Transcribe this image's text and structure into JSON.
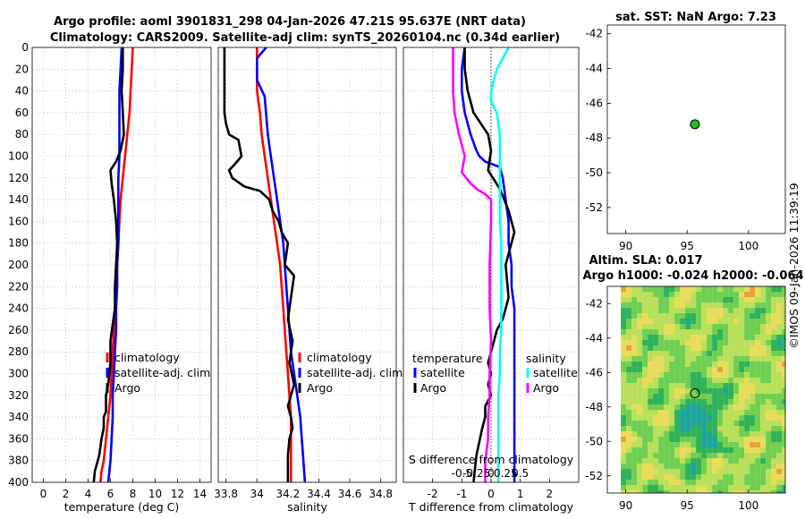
{
  "title_line1": "Argo profile: aoml 3901831_298 04-Jan-2026 47.21S 95.637E (NRT data)",
  "title_line2": "Climatology: CARS2009. Satellite-adj clim: synTS_20260104.nc (0.34d earlier)",
  "watermark": "©IMOS 09-Jan-2026 11:39:19",
  "colors": {
    "climatology": "#ff0000",
    "satellite": "#0000ff",
    "argo": "#000000",
    "sat_salinity": "#00ffff",
    "argo_salinity": "#ff00ff",
    "float_marker": "#22bb22"
  },
  "chart_data": [
    {
      "id": "temperature",
      "type": "line",
      "xlabel": "temperature (deg C)",
      "ylabel": "",
      "xlim": [
        -1,
        15
      ],
      "ylim": [
        400,
        0
      ],
      "xticks": [
        0,
        2,
        4,
        6,
        8,
        10,
        12,
        14
      ],
      "xtick_labels": [
        "0",
        "2",
        "4",
        "6",
        "8",
        "10",
        "12",
        "14"
      ],
      "yticks": [
        0,
        20,
        40,
        60,
        80,
        100,
        120,
        140,
        160,
        180,
        200,
        220,
        240,
        260,
        280,
        300,
        320,
        340,
        360,
        380,
        400
      ],
      "ytick_labels": [
        "0",
        "20",
        "40",
        "60",
        "80",
        "100",
        "120",
        "140",
        "160",
        "180",
        "200",
        "220",
        "240",
        "260",
        "280",
        "300",
        "320",
        "340",
        "360",
        "380",
        "400"
      ],
      "legend": [
        "climatology",
        "satellite-adj. clim",
        "Argo"
      ],
      "series": [
        {
          "name": "climatology",
          "color": "#ff0000",
          "x": [
            8.0,
            7.9,
            7.8,
            7.7,
            7.5,
            7.3,
            7.1,
            6.9,
            6.8,
            6.7,
            6.6,
            6.5,
            6.4,
            6.3,
            6.2,
            6.1,
            6.0,
            5.9,
            5.8,
            5.7,
            5.6,
            5.5,
            5.4,
            5.2,
            5.1
          ],
          "y": [
            0,
            20,
            40,
            60,
            80,
            100,
            120,
            140,
            160,
            180,
            200,
            220,
            240,
            260,
            280,
            300,
            320,
            330,
            340,
            350,
            360,
            370,
            380,
            390,
            400
          ]
        },
        {
          "name": "satellite-adj. clim",
          "color": "#0000ff",
          "x": [
            7.0,
            6.9,
            6.8,
            6.8,
            6.8,
            6.8,
            6.7,
            6.7,
            6.7,
            6.7,
            6.6,
            6.6,
            6.5,
            6.5,
            6.4,
            6.3,
            6.2,
            6.2,
            6.1,
            6.0,
            5.9,
            5.8
          ],
          "y": [
            0,
            20,
            40,
            60,
            80,
            100,
            120,
            140,
            160,
            180,
            200,
            220,
            240,
            260,
            280,
            300,
            320,
            340,
            360,
            380,
            390,
            400
          ]
        },
        {
          "name": "Argo",
          "color": "#000000",
          "x": [
            7.1,
            7.1,
            7.0,
            7.1,
            7.2,
            6.9,
            6.5,
            6.0,
            6.1,
            6.3,
            6.5,
            6.6,
            6.5,
            6.4,
            6.4,
            6.2,
            6.1,
            6.0,
            6.0,
            5.8,
            5.6,
            5.6,
            5.4,
            5.4,
            5.2,
            5.0,
            4.6,
            4.5
          ],
          "y": [
            0,
            20,
            40,
            60,
            80,
            95,
            105,
            113,
            125,
            140,
            160,
            180,
            200,
            220,
            240,
            255,
            262,
            270,
            290,
            310,
            320,
            335,
            340,
            350,
            360,
            375,
            390,
            400
          ]
        }
      ]
    },
    {
      "id": "salinity",
      "type": "line",
      "xlabel": "salinity",
      "xlim": [
        33.75,
        34.9
      ],
      "ylim": [
        400,
        0
      ],
      "xticks": [
        33.8,
        34,
        34.2,
        34.4,
        34.6,
        34.8
      ],
      "xtick_labels": [
        "33.8",
        "34",
        "34.2",
        "34.4",
        "34.6",
        "34.8"
      ],
      "legend": [
        "climatology",
        "satellite-adj. clim",
        "Argo"
      ],
      "series": [
        {
          "name": "climatology",
          "color": "#ff0000",
          "x": [
            34.0,
            34.0,
            34.0,
            34.02,
            34.03,
            34.05,
            34.07,
            34.09,
            34.11,
            34.13,
            34.15,
            34.16,
            34.17,
            34.18,
            34.19,
            34.2,
            34.21,
            34.22,
            34.22,
            34.22,
            34.22
          ],
          "y": [
            0,
            20,
            40,
            60,
            80,
            100,
            120,
            140,
            160,
            180,
            200,
            220,
            240,
            260,
            280,
            300,
            320,
            340,
            360,
            380,
            400
          ]
        },
        {
          "name": "satellite-adj. clim",
          "color": "#0000ff",
          "x": [
            34.06,
            34.0,
            34.0,
            34.05,
            34.07,
            34.09,
            34.11,
            34.13,
            34.15,
            34.17,
            34.18,
            34.19,
            34.2,
            34.21,
            34.22,
            34.24,
            34.26,
            34.28,
            34.29,
            34.3,
            34.31
          ],
          "y": [
            0,
            10,
            30,
            45,
            80,
            100,
            120,
            140,
            160,
            180,
            200,
            220,
            240,
            260,
            280,
            300,
            320,
            340,
            360,
            380,
            400
          ]
        },
        {
          "name": "Argo",
          "color": "#000000",
          "x": [
            33.79,
            33.79,
            33.79,
            33.79,
            33.8,
            33.82,
            33.88,
            33.9,
            33.86,
            33.82,
            33.84,
            33.92,
            34.02,
            34.08,
            34.1,
            34.14,
            34.16,
            34.2,
            34.18,
            34.24,
            34.22,
            34.2,
            34.23,
            34.21,
            34.24,
            34.2,
            34.22,
            34.23,
            34.21,
            34.2,
            34.2,
            34.2
          ],
          "y": [
            0,
            20,
            40,
            60,
            70,
            80,
            85,
            100,
            107,
            113,
            120,
            128,
            132,
            140,
            150,
            160,
            170,
            180,
            200,
            210,
            230,
            250,
            270,
            290,
            310,
            330,
            340,
            350,
            360,
            375,
            390,
            400
          ]
        }
      ]
    },
    {
      "id": "difference",
      "type": "line",
      "xlabel": "T difference from climatology",
      "top_label": "S difference from climatology",
      "xlim": [
        -3,
        3
      ],
      "ylim": [
        400,
        0
      ],
      "xticks": [
        -2,
        -1,
        0,
        1,
        2
      ],
      "xtick_labels": [
        "-2",
        "-1",
        "0",
        "1",
        "2"
      ],
      "top_ticks": [
        -1,
        -0.5,
        0,
        0.5,
        1
      ],
      "top_tick_labels": [
        "-0.5",
        "-0.25",
        "0",
        "0.25",
        "0.5"
      ],
      "legend_left_title": "temperature",
      "legend_right_title": "salinity",
      "legend_left": [
        "satellite",
        "Argo"
      ],
      "legend_right": [
        "satellite",
        "Argo"
      ],
      "series": [
        {
          "name": "temperature satellite",
          "color": "#0000ff",
          "x": [
            -0.9,
            -1.0,
            -1.0,
            -0.9,
            -0.7,
            -0.5,
            -0.4,
            -0.2,
            0.3,
            0.4,
            0.5,
            0.6,
            0.6,
            0.7,
            0.7,
            0.8,
            0.8,
            0.8,
            0.8,
            0.8,
            0.8,
            0.8,
            0.8
          ],
          "y": [
            0,
            20,
            40,
            60,
            80,
            95,
            100,
            105,
            110,
            120,
            140,
            160,
            180,
            200,
            220,
            240,
            260,
            280,
            300,
            320,
            340,
            360,
            400
          ]
        },
        {
          "name": "temperature Argo",
          "color": "#000000",
          "x": [
            -0.9,
            -0.9,
            -0.8,
            -0.6,
            -0.1,
            0.0,
            -0.1,
            0.3,
            0.6,
            0.8,
            0.5,
            0.6,
            0.4,
            0.2,
            0.1,
            0.0,
            -0.1,
            0.0,
            -0.1,
            0.0,
            -0.2,
            -0.2,
            -0.3,
            -0.5,
            -0.6
          ],
          "y": [
            0,
            20,
            40,
            60,
            80,
            95,
            113,
            130,
            150,
            170,
            200,
            230,
            250,
            260,
            270,
            280,
            290,
            300,
            310,
            320,
            330,
            340,
            350,
            375,
            400
          ]
        },
        {
          "name": "salinity satellite",
          "color": "#00ffff",
          "x": [
            0.6,
            0.2,
            0.0,
            0.0,
            0.2,
            0.3,
            0.3,
            0.3,
            0.3,
            0.3,
            0.35,
            0.35,
            0.35,
            0.35,
            0.35,
            0.3,
            0.3,
            0.25,
            0.25,
            0.25,
            0.25,
            0.25
          ],
          "y": [
            0,
            20,
            40,
            50,
            60,
            80,
            100,
            120,
            140,
            160,
            180,
            200,
            220,
            240,
            260,
            280,
            300,
            320,
            340,
            360,
            380,
            400
          ]
        },
        {
          "name": "salinity Argo",
          "color": "#ff00ff",
          "x": [
            -1.3,
            -1.3,
            -1.3,
            -1.25,
            -1.1,
            -0.9,
            -1.0,
            -0.7,
            -0.5,
            -0.2,
            0.0,
            0.0,
            -0.05,
            -0.05,
            0.0,
            -0.05,
            -0.05,
            -0.1,
            -0.1,
            -0.2,
            -0.2,
            -0.2
          ],
          "y": [
            0,
            20,
            40,
            60,
            80,
            100,
            115,
            125,
            130,
            135,
            140,
            160,
            200,
            240,
            270,
            300,
            320,
            340,
            360,
            380,
            390,
            400
          ]
        }
      ]
    },
    {
      "id": "sst_map",
      "type": "scatter",
      "title": "sat. SST: NaN Argo: 7.23",
      "xlim": [
        88.5,
        103
      ],
      "ylim": [
        -53.5,
        -41.5
      ],
      "xticks": [
        90,
        95,
        100
      ],
      "xtick_labels": [
        "90",
        "95",
        "100"
      ],
      "yticks": [
        -42,
        -44,
        -46,
        -48,
        -50,
        -52
      ],
      "ytick_labels": [
        "-42",
        "-44",
        "-46",
        "-48",
        "-50",
        "-52"
      ],
      "points": [
        {
          "lon": 95.637,
          "lat": -47.21
        }
      ]
    },
    {
      "id": "sla_map",
      "type": "heatmap",
      "title_line1": "Altim. SLA: 0.017",
      "title_line2": "Argo h1000: -0.024 h2000: -0.064",
      "xlim": [
        88.5,
        103
      ],
      "ylim": [
        -53,
        -41
      ],
      "xticks": [
        90,
        95,
        100
      ],
      "xtick_labels": [
        "90",
        "95",
        "100"
      ],
      "yticks": [
        -42,
        -44,
        -46,
        -48,
        -50,
        -52
      ],
      "ytick_labels": [
        "-42",
        "-44",
        "-46",
        "-48",
        "-50",
        "-52"
      ],
      "points": [
        {
          "lon": 95.637,
          "lat": -47.21
        }
      ]
    }
  ]
}
